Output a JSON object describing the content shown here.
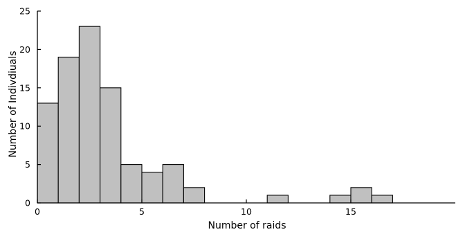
{
  "chart_data": {
    "type": "bar",
    "title": "",
    "xlabel": "Number of raids",
    "ylabel": "Number of Indivdiuals",
    "xlim": [
      0,
      20
    ],
    "ylim": [
      0,
      25
    ],
    "xticks": [
      0,
      5,
      10,
      15
    ],
    "yticks": [
      0,
      5,
      10,
      15,
      20,
      25
    ],
    "bin_width": 1,
    "bins": [
      {
        "x0": 0,
        "x1": 1,
        "count": 13
      },
      {
        "x0": 1,
        "x1": 2,
        "count": 19
      },
      {
        "x0": 2,
        "x1": 3,
        "count": 23
      },
      {
        "x0": 3,
        "x1": 4,
        "count": 15
      },
      {
        "x0": 4,
        "x1": 5,
        "count": 5
      },
      {
        "x0": 5,
        "x1": 6,
        "count": 4
      },
      {
        "x0": 6,
        "x1": 7,
        "count": 5
      },
      {
        "x0": 7,
        "x1": 8,
        "count": 2
      },
      {
        "x0": 11,
        "x1": 12,
        "count": 1
      },
      {
        "x0": 14,
        "x1": 15,
        "count": 1
      },
      {
        "x0": 15,
        "x1": 16,
        "count": 2
      },
      {
        "x0": 16,
        "x1": 17,
        "count": 1
      }
    ],
    "bar_color": "#c0c0c0",
    "bar_edge_color": "#000000",
    "grid": false
  }
}
